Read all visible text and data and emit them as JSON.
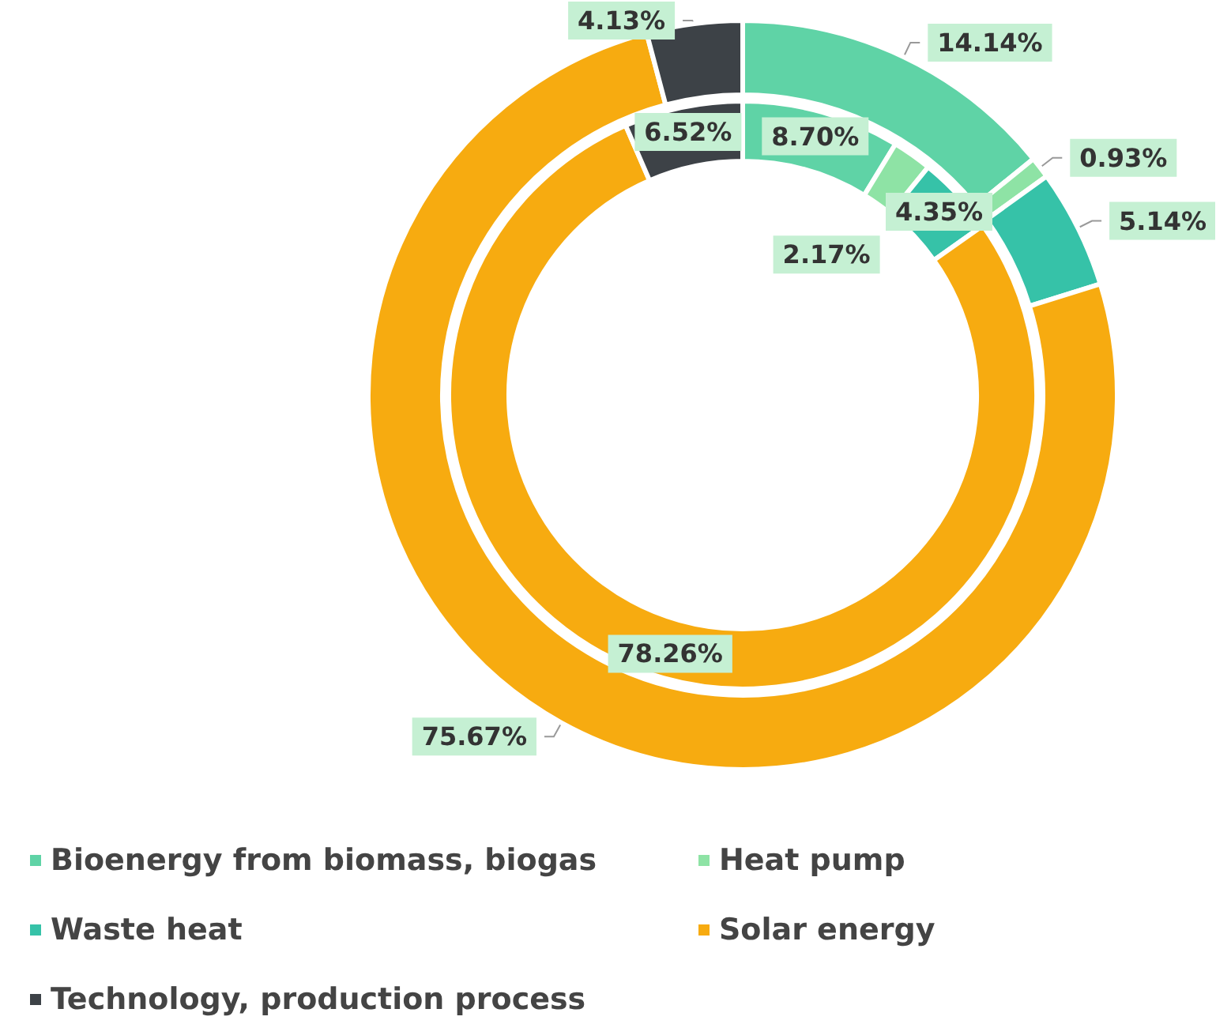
{
  "chart_data": {
    "type": "donut",
    "categories": [
      "Bioenergy from biomass, biogas",
      "Heat pump",
      "Waste heat",
      "Solar energy",
      "Technology, production process"
    ],
    "colors": [
      "#5fd3a6",
      "#8ee3a5",
      "#36c2a8",
      "#f7ab10",
      "#3d4247"
    ],
    "series": [
      {
        "values": [
          14.14,
          0.93,
          5.14,
          75.67,
          4.13
        ],
        "value_labels": [
          "14.14%",
          "0.93%",
          "5.14%",
          "75.67%",
          "4.13%"
        ]
      },
      {
        "values": [
          8.7,
          2.17,
          4.35,
          78.26,
          6.52
        ],
        "value_labels": [
          "8.70%",
          "2.17%",
          "4.35%",
          "78.26%",
          "6.52%"
        ]
      }
    ],
    "legend": "bottom"
  }
}
